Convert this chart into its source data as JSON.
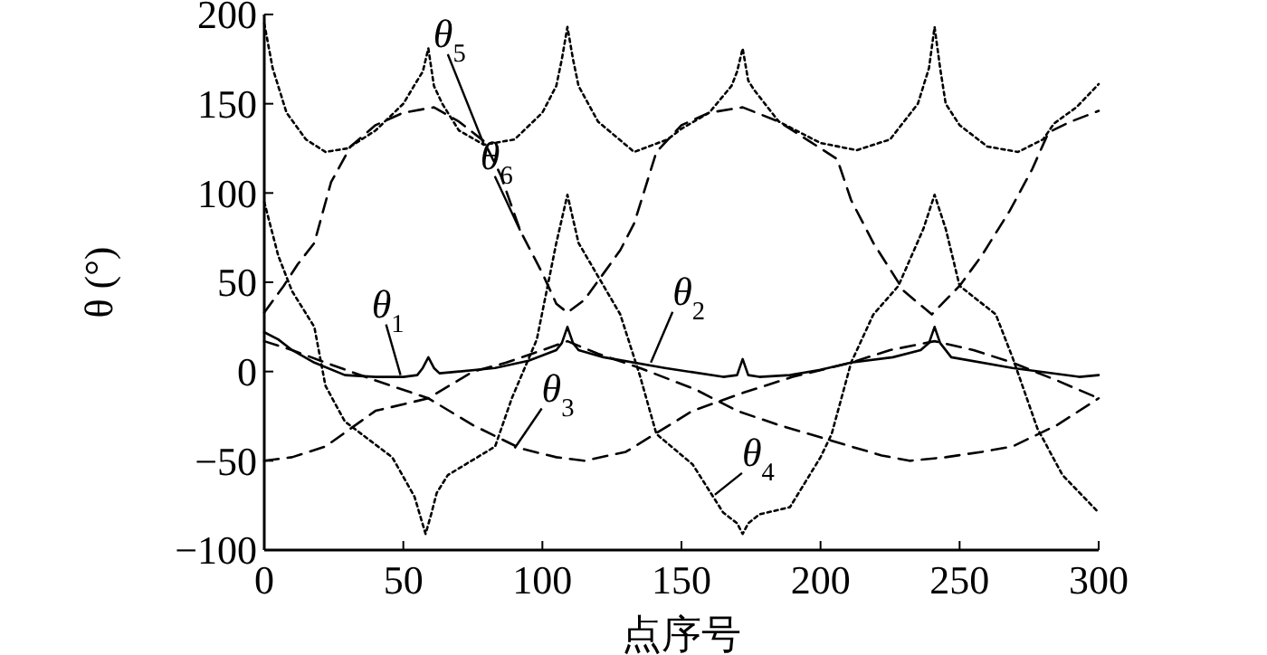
{
  "chart_data": {
    "type": "line",
    "xlabel": "点序号",
    "ylabel": "θ (°)",
    "xlim": [
      0,
      300
    ],
    "xticks": [
      0,
      50,
      100,
      150,
      200,
      250,
      300
    ],
    "ylim": [
      -100,
      200
    ],
    "yticks": [
      -100,
      -50,
      0,
      50,
      100,
      150,
      200
    ],
    "marker": "none",
    "series": [
      {
        "color": "#000000",
        "line_style": "solid",
        "x": [
          0,
          5,
          10,
          18,
          29,
          40,
          50,
          55,
          57,
          59,
          61,
          63,
          70,
          83,
          95,
          105,
          107,
          109,
          111,
          113,
          122,
          144,
          165,
          170,
          172,
          174,
          178,
          189,
          200,
          211,
          226,
          236,
          239,
          241,
          243,
          247,
          269,
          293,
          300
        ],
        "values": [
          22,
          18,
          12,
          5,
          -2,
          -3,
          -3,
          -2,
          2,
          8,
          2,
          -1,
          0,
          2,
          6,
          12,
          16,
          25,
          16,
          12,
          8,
          2,
          -3,
          -2,
          7,
          -2,
          -3,
          -2,
          1,
          5,
          8,
          12,
          16,
          25,
          16,
          8,
          2,
          -3,
          -2
        ]
      },
      {
        "color": "#000000",
        "line_style": "dashed",
        "x": [
          0,
          10,
          22,
          40,
          59,
          75,
          87,
          100,
          109,
          120,
          135,
          155,
          170,
          185,
          196,
          211,
          222,
          232,
          245,
          258,
          269,
          285,
          300
        ],
        "values": [
          -50,
          -48,
          -42,
          -22,
          -15,
          0,
          5,
          12,
          17,
          10,
          2,
          -10,
          -22,
          -30,
          -35,
          -42,
          -47,
          -50,
          -48,
          -45,
          -42,
          -30,
          -15
        ]
      },
      {
        "color": "#000000",
        "line_style": "dashed",
        "x": [
          0,
          10,
          22,
          40,
          59,
          75,
          92,
          105,
          115,
          130,
          154,
          172,
          190,
          211,
          225,
          241,
          255,
          269,
          285,
          300
        ],
        "values": [
          17,
          12,
          5,
          -5,
          -15,
          -30,
          -43,
          -48,
          -50,
          -45,
          -22,
          -12,
          -3,
          5,
          12,
          17,
          12,
          5,
          -5,
          -15
        ]
      },
      {
        "color": "#000000",
        "line_style": "dotted",
        "x": [
          0,
          5,
          10,
          18,
          22,
          29,
          46,
          54,
          58,
          60,
          62,
          66,
          83,
          89,
          98,
          105,
          109,
          113,
          128,
          135,
          141,
          154,
          165,
          170,
          172,
          174,
          178,
          189,
          200,
          204,
          211,
          219,
          228,
          237,
          241,
          245,
          250,
          263,
          269,
          278,
          287,
          300
        ],
        "values": [
          95,
          65,
          45,
          25,
          -8,
          -28,
          -48,
          -70,
          -91,
          -80,
          -68,
          -58,
          -42,
          -15,
          18,
          72,
          99,
          72,
          32,
          -2,
          -35,
          -52,
          -79,
          -85,
          -91,
          -85,
          -80,
          -76,
          -48,
          -35,
          5,
          32,
          48,
          80,
          99,
          80,
          48,
          32,
          8,
          -32,
          -58,
          -79
        ]
      },
      {
        "color": "#000000",
        "line_style": "dotted",
        "x": [
          0,
          3,
          8,
          15,
          22,
          30,
          40,
          50,
          55,
          57,
          59,
          61,
          64,
          70,
          79,
          90,
          100,
          105,
          107,
          109,
          111,
          113,
          120,
          133,
          145,
          150,
          160,
          168,
          170,
          172,
          174,
          176,
          185,
          200,
          213,
          225,
          235,
          239,
          241,
          243,
          245,
          250,
          260,
          271,
          280,
          284,
          292,
          300
        ],
        "values": [
          195,
          170,
          145,
          130,
          123,
          125,
          135,
          150,
          163,
          168,
          181,
          160,
          150,
          135,
          127,
          130,
          145,
          160,
          175,
          193,
          175,
          160,
          140,
          123,
          130,
          136,
          145,
          160,
          168,
          181,
          163,
          158,
          140,
          128,
          124,
          130,
          150,
          170,
          193,
          170,
          150,
          138,
          126,
          123,
          130,
          139,
          148,
          161
        ]
      },
      {
        "color": "#000000",
        "line_style": "dashed",
        "x": [
          0,
          7,
          12,
          18,
          24,
          31,
          40,
          50,
          61,
          70,
          79,
          85,
          92,
          100,
          105,
          109,
          115,
          122,
          128,
          133,
          141,
          150,
          160,
          172,
          185,
          196,
          206,
          211,
          219,
          230,
          240,
          250,
          258,
          268,
          276,
          282,
          290,
          300
        ],
        "values": [
          33,
          48,
          60,
          72,
          106,
          126,
          138,
          145,
          148,
          140,
          129,
          110,
          79,
          55,
          38,
          33,
          40,
          55,
          68,
          83,
          123,
          138,
          145,
          148,
          140,
          129,
          119,
          96,
          72,
          45,
          32,
          48,
          65,
          90,
          113,
          134,
          140,
          146
        ]
      }
    ],
    "annotations": [
      {
        "text": "θ$_{1}$",
        "x": 49,
        "y": -2
      },
      {
        "text": "θ$_{2}$",
        "x": 139,
        "y": 5
      },
      {
        "text": "θ$_{3}$",
        "x": 90,
        "y": -43
      },
      {
        "text": "θ$_{4}$",
        "x": 162,
        "y": -69
      },
      {
        "text": "θ$_{5}$",
        "x": 79,
        "y": 127
      },
      {
        "text": "θ$_{6}$",
        "x": 92,
        "y": 79
      }
    ]
  }
}
